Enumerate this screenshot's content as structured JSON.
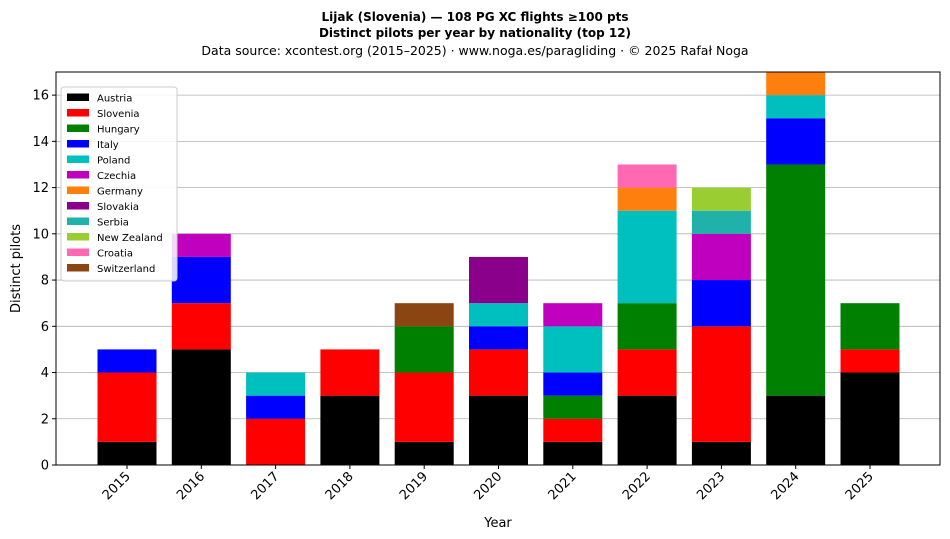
{
  "chart_data": {
    "type": "bar",
    "stacked": true,
    "title": "Lijak (Slovenia)  —  108 PG XC flights ≥100 pts",
    "subtitle": "Distinct pilots per year by nationality (top 12)",
    "source": "Data source: xcontest.org (2015–2025)  ·  www.noga.es/paragliding  ·  © 2025 Rafał Noga",
    "xlabel": "Year",
    "ylabel": "Distinct pilots",
    "ylim": [
      0,
      17
    ],
    "yticks": [
      0,
      2,
      4,
      6,
      8,
      10,
      12,
      14,
      16
    ],
    "grid": "horizontal",
    "legend_position": "top-left",
    "categories": [
      "2015",
      "2016",
      "2017",
      "2018",
      "2019",
      "2020",
      "2021",
      "2022",
      "2023",
      "2024",
      "2025"
    ],
    "series": [
      {
        "name": "Austria",
        "color": "#000000",
        "values": [
          1,
          5,
          0,
          3,
          1,
          3,
          1,
          3,
          1,
          3,
          4
        ]
      },
      {
        "name": "Slovenia",
        "color": "#ff0000",
        "values": [
          3,
          2,
          2,
          2,
          3,
          2,
          1,
          2,
          5,
          0,
          1
        ]
      },
      {
        "name": "Hungary",
        "color": "#008000",
        "values": [
          0,
          0,
          0,
          0,
          2,
          0,
          1,
          2,
          0,
          10,
          2
        ]
      },
      {
        "name": "Italy",
        "color": "#0000ff",
        "values": [
          1,
          2,
          1,
          0,
          0,
          1,
          1,
          0,
          2,
          2,
          0
        ]
      },
      {
        "name": "Poland",
        "color": "#00bfbf",
        "values": [
          0,
          0,
          1,
          0,
          0,
          1,
          2,
          4,
          0,
          1,
          0
        ]
      },
      {
        "name": "Czechia",
        "color": "#bf00bf",
        "values": [
          0,
          1,
          0,
          0,
          0,
          0,
          1,
          0,
          2,
          0,
          0
        ]
      },
      {
        "name": "Germany",
        "color": "#ff7f0e",
        "values": [
          0,
          0,
          0,
          0,
          0,
          0,
          0,
          1,
          0,
          1,
          0
        ]
      },
      {
        "name": "Slovakia",
        "color": "#8b008b",
        "values": [
          0,
          0,
          0,
          0,
          0,
          2,
          0,
          0,
          0,
          0,
          0
        ]
      },
      {
        "name": "Serbia",
        "color": "#20b2aa",
        "values": [
          0,
          0,
          0,
          0,
          0,
          0,
          0,
          0,
          1,
          0,
          0
        ]
      },
      {
        "name": "New Zealand",
        "color": "#9acd32",
        "values": [
          0,
          0,
          0,
          0,
          0,
          0,
          0,
          0,
          1,
          0,
          0
        ]
      },
      {
        "name": "Croatia",
        "color": "#ff69b4",
        "values": [
          0,
          0,
          0,
          0,
          0,
          0,
          0,
          1,
          0,
          0,
          0
        ]
      },
      {
        "name": "Switzerland",
        "color": "#8b4513",
        "values": [
          0,
          0,
          0,
          0,
          1,
          0,
          0,
          0,
          0,
          0,
          0
        ]
      }
    ]
  }
}
